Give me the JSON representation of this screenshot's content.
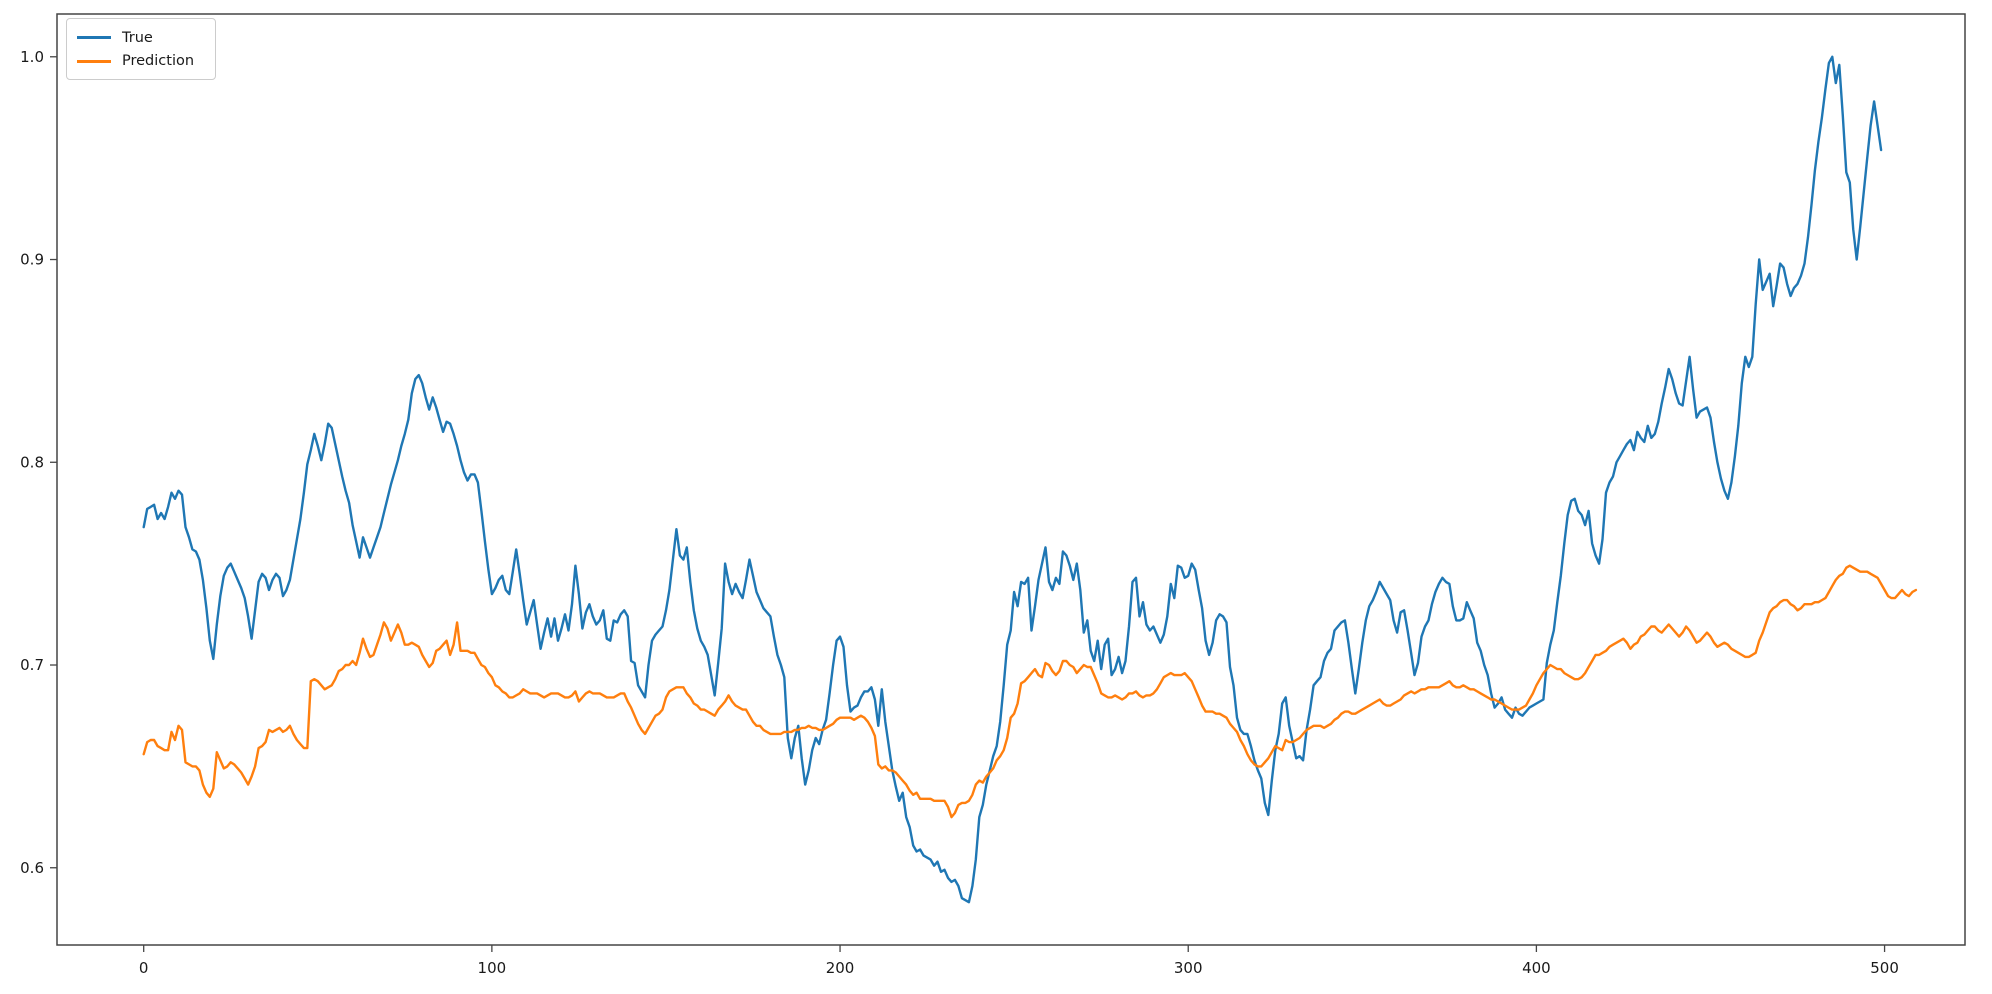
{
  "legend": {
    "position": "upper-left",
    "items": [
      {
        "label": "True",
        "color": "#1f77b4"
      },
      {
        "label": "Prediction",
        "color": "#ff7f0e"
      }
    ]
  },
  "chart_data": {
    "type": "line",
    "title": "",
    "xlabel": "",
    "ylabel": "",
    "grid": false,
    "background": "#ffffff",
    "axis_color": "#454545",
    "tick_label_color": "#1a1a1a",
    "tick_font_size": 15,
    "line_width": 2.4,
    "xlim": [
      -24.9,
      523.1
    ],
    "ylim": [
      0.5619,
      1.0211
    ],
    "x_ticks": [
      0,
      100,
      200,
      300,
      400,
      500
    ],
    "x_tick_labels": [
      "0",
      "100",
      "200",
      "300",
      "400",
      "500"
    ],
    "y_ticks": [
      0.6,
      0.7,
      0.8,
      0.9,
      1.0
    ],
    "y_tick_labels": [
      "0.6",
      "0.7",
      "0.8",
      "0.9",
      "1.0"
    ],
    "series": [
      {
        "name": "True",
        "color": "#1f77b4",
        "x_start": 0,
        "x_step": 1,
        "values": [
          0.768,
          0.777,
          0.778,
          0.779,
          0.772,
          0.775,
          0.772,
          0.778,
          0.785,
          0.782,
          0.786,
          0.784,
          0.768,
          0.763,
          0.757,
          0.756,
          0.752,
          0.742,
          0.728,
          0.712,
          0.703,
          0.72,
          0.734,
          0.744,
          0.748,
          0.75,
          0.746,
          0.742,
          0.738,
          0.733,
          0.724,
          0.713,
          0.727,
          0.741,
          0.745,
          0.743,
          0.737,
          0.742,
          0.745,
          0.743,
          0.734,
          0.737,
          0.742,
          0.752,
          0.762,
          0.772,
          0.785,
          0.799,
          0.806,
          0.814,
          0.808,
          0.801,
          0.809,
          0.819,
          0.817,
          0.809,
          0.801,
          0.793,
          0.786,
          0.78,
          0.769,
          0.761,
          0.753,
          0.763,
          0.758,
          0.753,
          0.758,
          0.763,
          0.768,
          0.775,
          0.782,
          0.789,
          0.795,
          0.801,
          0.808,
          0.814,
          0.821,
          0.834,
          0.841,
          0.843,
          0.839,
          0.832,
          0.826,
          0.832,
          0.827,
          0.821,
          0.815,
          0.82,
          0.819,
          0.814,
          0.808,
          0.801,
          0.795,
          0.791,
          0.794,
          0.794,
          0.79,
          0.776,
          0.761,
          0.747,
          0.735,
          0.738,
          0.742,
          0.744,
          0.737,
          0.735,
          0.746,
          0.757,
          0.745,
          0.732,
          0.72,
          0.726,
          0.732,
          0.72,
          0.708,
          0.716,
          0.723,
          0.714,
          0.723,
          0.712,
          0.718,
          0.725,
          0.717,
          0.73,
          0.749,
          0.735,
          0.718,
          0.726,
          0.73,
          0.724,
          0.72,
          0.722,
          0.727,
          0.713,
          0.712,
          0.722,
          0.721,
          0.725,
          0.727,
          0.724,
          0.702,
          0.701,
          0.69,
          0.687,
          0.684,
          0.7,
          0.712,
          0.715,
          0.717,
          0.719,
          0.727,
          0.737,
          0.752,
          0.767,
          0.754,
          0.752,
          0.758,
          0.741,
          0.727,
          0.718,
          0.712,
          0.709,
          0.705,
          0.695,
          0.685,
          0.701,
          0.718,
          0.75,
          0.741,
          0.735,
          0.74,
          0.736,
          0.733,
          0.742,
          0.752,
          0.744,
          0.736,
          0.732,
          0.728,
          0.726,
          0.724,
          0.714,
          0.705,
          0.7,
          0.694,
          0.664,
          0.654,
          0.664,
          0.67,
          0.654,
          0.641,
          0.648,
          0.658,
          0.664,
          0.661,
          0.668,
          0.673,
          0.686,
          0.7,
          0.712,
          0.714,
          0.709,
          0.69,
          0.677,
          0.679,
          0.68,
          0.684,
          0.687,
          0.687,
          0.689,
          0.683,
          0.67,
          0.688,
          0.672,
          0.66,
          0.648,
          0.64,
          0.633,
          0.637,
          0.625,
          0.62,
          0.611,
          0.608,
          0.609,
          0.606,
          0.605,
          0.604,
          0.601,
          0.603,
          0.598,
          0.599,
          0.595,
          0.593,
          0.594,
          0.591,
          0.585,
          0.584,
          0.583,
          0.591,
          0.604,
          0.625,
          0.631,
          0.641,
          0.648,
          0.655,
          0.66,
          0.672,
          0.69,
          0.71,
          0.717,
          0.736,
          0.729,
          0.741,
          0.74,
          0.743,
          0.717,
          0.729,
          0.742,
          0.75,
          0.758,
          0.741,
          0.737,
          0.743,
          0.74,
          0.756,
          0.754,
          0.749,
          0.742,
          0.75,
          0.737,
          0.716,
          0.722,
          0.707,
          0.702,
          0.712,
          0.698,
          0.71,
          0.713,
          0.695,
          0.698,
          0.704,
          0.696,
          0.702,
          0.719,
          0.741,
          0.743,
          0.724,
          0.731,
          0.72,
          0.717,
          0.719,
          0.715,
          0.711,
          0.715,
          0.724,
          0.74,
          0.733,
          0.749,
          0.748,
          0.743,
          0.744,
          0.75,
          0.747,
          0.737,
          0.728,
          0.712,
          0.705,
          0.711,
          0.722,
          0.725,
          0.724,
          0.721,
          0.699,
          0.69,
          0.674,
          0.668,
          0.666,
          0.666,
          0.66,
          0.653,
          0.648,
          0.644,
          0.632,
          0.626,
          0.643,
          0.658,
          0.666,
          0.681,
          0.684,
          0.67,
          0.662,
          0.654,
          0.655,
          0.653,
          0.668,
          0.678,
          0.69,
          0.692,
          0.694,
          0.702,
          0.706,
          0.708,
          0.717,
          0.719,
          0.721,
          0.722,
          0.711,
          0.698,
          0.686,
          0.698,
          0.711,
          0.722,
          0.729,
          0.732,
          0.736,
          0.741,
          0.738,
          0.735,
          0.732,
          0.722,
          0.716,
          0.726,
          0.727,
          0.717,
          0.706,
          0.695,
          0.701,
          0.714,
          0.719,
          0.722,
          0.73,
          0.736,
          0.74,
          0.743,
          0.741,
          0.74,
          0.729,
          0.722,
          0.722,
          0.723,
          0.731,
          0.727,
          0.723,
          0.711,
          0.707,
          0.7,
          0.695,
          0.686,
          0.679,
          0.681,
          0.684,
          0.678,
          0.676,
          0.674,
          0.679,
          0.676,
          0.675,
          0.677,
          0.679,
          0.68,
          0.681,
          0.682,
          0.683,
          0.701,
          0.71,
          0.717,
          0.731,
          0.744,
          0.76,
          0.774,
          0.781,
          0.782,
          0.776,
          0.774,
          0.769,
          0.776,
          0.76,
          0.754,
          0.75,
          0.762,
          0.785,
          0.79,
          0.793,
          0.8,
          0.803,
          0.806,
          0.809,
          0.811,
          0.806,
          0.815,
          0.812,
          0.81,
          0.818,
          0.812,
          0.814,
          0.82,
          0.829,
          0.837,
          0.846,
          0.841,
          0.834,
          0.829,
          0.828,
          0.84,
          0.852,
          0.836,
          0.822,
          0.825,
          0.826,
          0.827,
          0.822,
          0.81,
          0.8,
          0.792,
          0.786,
          0.782,
          0.79,
          0.803,
          0.818,
          0.839,
          0.852,
          0.847,
          0.852,
          0.878,
          0.9,
          0.885,
          0.889,
          0.893,
          0.877,
          0.887,
          0.898,
          0.896,
          0.888,
          0.882,
          0.886,
          0.888,
          0.892,
          0.898,
          0.911,
          0.927,
          0.944,
          0.958,
          0.97,
          0.984,
          0.997,
          1.0,
          0.987,
          0.996,
          0.971,
          0.943,
          0.938,
          0.915,
          0.9,
          0.916,
          0.933,
          0.95,
          0.966,
          0.978,
          0.966,
          0.954
        ]
      },
      {
        "name": "Prediction",
        "color": "#ff7f0e",
        "x_start": 0,
        "x_step": 1,
        "values": [
          0.656,
          0.662,
          0.663,
          0.663,
          0.66,
          0.659,
          0.658,
          0.658,
          0.667,
          0.663,
          0.67,
          0.668,
          0.652,
          0.651,
          0.65,
          0.65,
          0.648,
          0.641,
          0.637,
          0.635,
          0.639,
          0.657,
          0.653,
          0.649,
          0.65,
          0.652,
          0.651,
          0.649,
          0.647,
          0.644,
          0.641,
          0.645,
          0.65,
          0.659,
          0.66,
          0.662,
          0.668,
          0.667,
          0.668,
          0.669,
          0.667,
          0.668,
          0.67,
          0.666,
          0.663,
          0.661,
          0.659,
          0.659,
          0.692,
          0.693,
          0.692,
          0.69,
          0.688,
          0.689,
          0.69,
          0.693,
          0.697,
          0.698,
          0.7,
          0.7,
          0.702,
          0.7,
          0.706,
          0.713,
          0.708,
          0.704,
          0.705,
          0.71,
          0.715,
          0.721,
          0.718,
          0.712,
          0.716,
          0.72,
          0.716,
          0.71,
          0.71,
          0.711,
          0.71,
          0.709,
          0.705,
          0.702,
          0.699,
          0.701,
          0.707,
          0.708,
          0.71,
          0.712,
          0.705,
          0.71,
          0.721,
          0.707,
          0.707,
          0.707,
          0.706,
          0.706,
          0.703,
          0.7,
          0.699,
          0.696,
          0.694,
          0.69,
          0.689,
          0.687,
          0.686,
          0.684,
          0.684,
          0.685,
          0.686,
          0.688,
          0.687,
          0.686,
          0.686,
          0.686,
          0.685,
          0.684,
          0.685,
          0.686,
          0.686,
          0.686,
          0.685,
          0.684,
          0.684,
          0.685,
          0.687,
          0.682,
          0.684,
          0.686,
          0.687,
          0.686,
          0.686,
          0.686,
          0.685,
          0.684,
          0.684,
          0.684,
          0.685,
          0.686,
          0.686,
          0.682,
          0.679,
          0.675,
          0.671,
          0.668,
          0.666,
          0.669,
          0.672,
          0.675,
          0.676,
          0.678,
          0.684,
          0.687,
          0.688,
          0.689,
          0.689,
          0.689,
          0.686,
          0.684,
          0.681,
          0.68,
          0.678,
          0.678,
          0.677,
          0.676,
          0.675,
          0.678,
          0.68,
          0.682,
          0.685,
          0.682,
          0.68,
          0.679,
          0.678,
          0.678,
          0.675,
          0.672,
          0.67,
          0.67,
          0.668,
          0.667,
          0.666,
          0.666,
          0.666,
          0.666,
          0.667,
          0.667,
          0.667,
          0.668,
          0.668,
          0.669,
          0.669,
          0.67,
          0.669,
          0.669,
          0.668,
          0.668,
          0.669,
          0.67,
          0.671,
          0.673,
          0.674,
          0.674,
          0.674,
          0.674,
          0.673,
          0.674,
          0.675,
          0.674,
          0.672,
          0.669,
          0.665,
          0.651,
          0.649,
          0.65,
          0.648,
          0.648,
          0.647,
          0.645,
          0.643,
          0.641,
          0.638,
          0.636,
          0.637,
          0.634,
          0.634,
          0.634,
          0.634,
          0.633,
          0.633,
          0.633,
          0.633,
          0.63,
          0.625,
          0.627,
          0.631,
          0.632,
          0.632,
          0.633,
          0.636,
          0.641,
          0.643,
          0.642,
          0.645,
          0.647,
          0.649,
          0.653,
          0.655,
          0.658,
          0.664,
          0.674,
          0.676,
          0.681,
          0.691,
          0.692,
          0.694,
          0.696,
          0.698,
          0.695,
          0.694,
          0.701,
          0.7,
          0.697,
          0.695,
          0.697,
          0.702,
          0.702,
          0.7,
          0.699,
          0.696,
          0.698,
          0.7,
          0.699,
          0.699,
          0.695,
          0.691,
          0.686,
          0.685,
          0.684,
          0.684,
          0.685,
          0.684,
          0.683,
          0.684,
          0.686,
          0.686,
          0.687,
          0.685,
          0.684,
          0.685,
          0.685,
          0.686,
          0.688,
          0.691,
          0.694,
          0.695,
          0.696,
          0.695,
          0.695,
          0.695,
          0.696,
          0.694,
          0.692,
          0.688,
          0.684,
          0.68,
          0.677,
          0.677,
          0.677,
          0.676,
          0.676,
          0.675,
          0.674,
          0.671,
          0.669,
          0.667,
          0.663,
          0.66,
          0.656,
          0.653,
          0.651,
          0.65,
          0.65,
          0.652,
          0.654,
          0.657,
          0.66,
          0.659,
          0.658,
          0.663,
          0.662,
          0.662,
          0.663,
          0.664,
          0.666,
          0.668,
          0.669,
          0.67,
          0.67,
          0.67,
          0.669,
          0.67,
          0.671,
          0.673,
          0.674,
          0.676,
          0.677,
          0.677,
          0.676,
          0.676,
          0.677,
          0.678,
          0.679,
          0.68,
          0.681,
          0.682,
          0.683,
          0.681,
          0.68,
          0.68,
          0.681,
          0.682,
          0.683,
          0.685,
          0.686,
          0.687,
          0.686,
          0.687,
          0.688,
          0.688,
          0.689,
          0.689,
          0.689,
          0.689,
          0.69,
          0.691,
          0.692,
          0.69,
          0.689,
          0.689,
          0.69,
          0.689,
          0.688,
          0.688,
          0.687,
          0.686,
          0.685,
          0.684,
          0.683,
          0.683,
          0.682,
          0.681,
          0.68,
          0.679,
          0.678,
          0.678,
          0.678,
          0.679,
          0.68,
          0.683,
          0.686,
          0.69,
          0.693,
          0.696,
          0.698,
          0.7,
          0.699,
          0.698,
          0.698,
          0.696,
          0.695,
          0.694,
          0.693,
          0.693,
          0.694,
          0.696,
          0.699,
          0.702,
          0.705,
          0.705,
          0.706,
          0.707,
          0.709,
          0.71,
          0.711,
          0.712,
          0.713,
          0.711,
          0.708,
          0.71,
          0.711,
          0.714,
          0.715,
          0.717,
          0.719,
          0.719,
          0.717,
          0.716,
          0.718,
          0.72,
          0.718,
          0.716,
          0.714,
          0.716,
          0.719,
          0.717,
          0.714,
          0.711,
          0.712,
          0.714,
          0.716,
          0.714,
          0.711,
          0.709,
          0.71,
          0.711,
          0.71,
          0.708,
          0.707,
          0.706,
          0.705,
          0.704,
          0.704,
          0.705,
          0.706,
          0.712,
          0.716,
          0.721,
          0.726,
          0.728,
          0.729,
          0.731,
          0.732,
          0.732,
          0.73,
          0.729,
          0.727,
          0.728,
          0.73,
          0.73,
          0.73,
          0.731,
          0.731,
          0.732,
          0.733,
          0.736,
          0.739,
          0.742,
          0.744,
          0.745,
          0.748,
          0.749,
          0.748,
          0.747,
          0.746,
          0.746,
          0.746,
          0.745,
          0.744,
          0.743,
          0.74,
          0.737,
          0.734,
          0.733,
          0.733,
          0.735,
          0.737,
          0.735,
          0.734,
          0.736,
          0.737
        ]
      }
    ]
  }
}
